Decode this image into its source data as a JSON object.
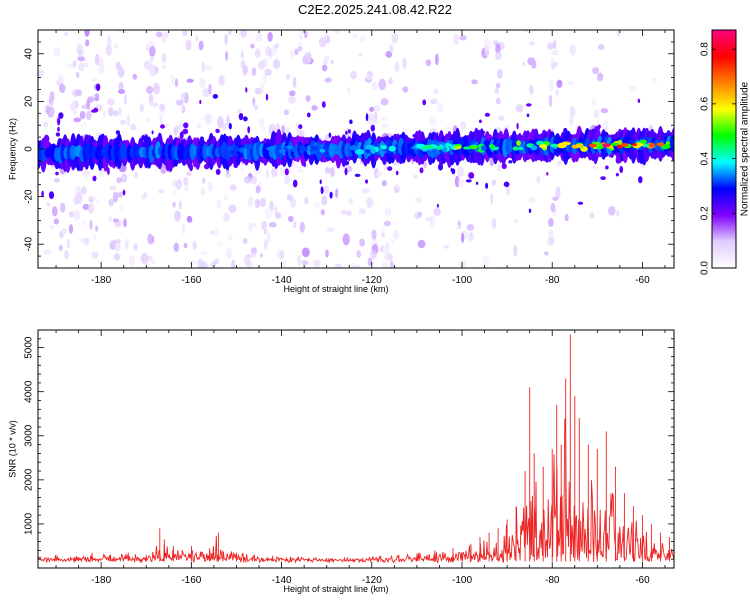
{
  "title": "C2E2.2025.241.08.42.R22",
  "chart_data": [
    {
      "type": "heatmap",
      "xlabel": "Height of straight line (km)",
      "ylabel": "Frequency (Hz)",
      "xlim": [
        -194,
        -53
      ],
      "ylim": [
        -50,
        50
      ],
      "xticks": [
        -180,
        -160,
        -140,
        -120,
        -100,
        -80,
        -60
      ],
      "yticks": [
        -40,
        -20,
        0,
        20,
        40
      ],
      "colorbar": {
        "label": "Normalized spectral amplitude",
        "range": [
          0,
          0.87
        ],
        "ticks": [
          0.0,
          0.2,
          0.4,
          0.6,
          0.8
        ],
        "colormap": [
          "#ffffff",
          "#e0ccff",
          "#8000ff",
          "#0000ff",
          "#00ffff",
          "#00ff00",
          "#ffff00",
          "#ff8000",
          "#ff0000",
          "#ff0080"
        ]
      },
      "ridge": {
        "center_frequency_start": -2,
        "center_frequency_end": 2,
        "peak_amplitude_x": -68,
        "peak_amplitude": 0.85
      },
      "grid": false
    },
    {
      "type": "line",
      "xlabel": "Height of straight line (km)",
      "ylabel": "SNR (10 * v/v)",
      "xlim": [
        -194,
        -53
      ],
      "ylim": [
        0,
        5400
      ],
      "xticks": [
        -180,
        -160,
        -140,
        -120,
        -100,
        -80,
        -60
      ],
      "yticks": [
        1000,
        2000,
        3000,
        4000,
        5000
      ],
      "color": "#ee2222",
      "series": [
        {
          "x": [
            -194,
            -190,
            -186,
            -182,
            -178,
            -174,
            -170,
            -167,
            -166,
            -164,
            -160,
            -156,
            -154,
            -153,
            -150,
            -146,
            -142,
            -138,
            -134,
            -130,
            -126,
            -122,
            -118,
            -114,
            -110,
            -106,
            -102,
            -98,
            -96,
            -94,
            -92,
            -90,
            -88,
            -86,
            -85,
            -84,
            -82,
            -80,
            -79,
            -78,
            -77,
            -76,
            -75,
            -74,
            -72,
            -70,
            -68,
            -66,
            -64,
            -62,
            -60,
            -58,
            -56,
            -54,
            -53
          ],
          "y": [
            250,
            300,
            250,
            350,
            300,
            350,
            300,
            900,
            650,
            500,
            500,
            450,
            800,
            400,
            350,
            300,
            280,
            250,
            220,
            230,
            250,
            230,
            280,
            300,
            330,
            400,
            450,
            550,
            700,
            800,
            900,
            1100,
            1400,
            2200,
            4100,
            2600,
            2300,
            2700,
            3700,
            2800,
            4300,
            5300,
            3900,
            3400,
            2800,
            2700,
            3100,
            2300,
            1700,
            1400,
            1200,
            1000,
            800,
            700,
            600
          ]
        }
      ],
      "grid": false
    }
  ]
}
